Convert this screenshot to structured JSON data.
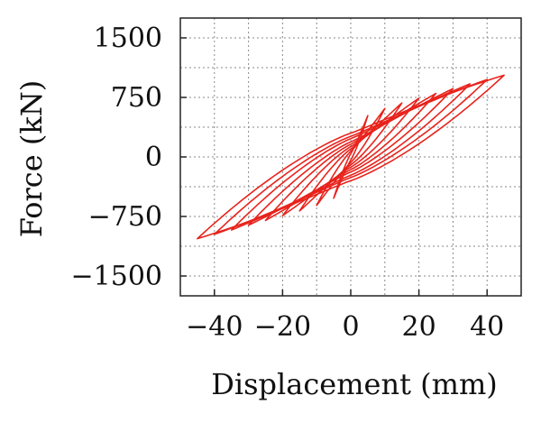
{
  "chart_data": {
    "type": "line",
    "title": "",
    "xlabel": "Displacement (mm)",
    "ylabel": "Force (kN)",
    "xlim": [
      -50,
      50
    ],
    "ylim": [
      -1750,
      1750
    ],
    "x_ticks": [
      {
        "value": -40,
        "label": "−40"
      },
      {
        "value": -20,
        "label": "−20"
      },
      {
        "value": 0,
        "label": "0"
      },
      {
        "value": 20,
        "label": "20"
      },
      {
        "value": 40,
        "label": "40"
      }
    ],
    "y_ticks": [
      {
        "value": 1500,
        "label": "1500"
      },
      {
        "value": 750,
        "label": "750"
      },
      {
        "value": 0,
        "label": "0"
      },
      {
        "value": -750,
        "label": "−750"
      },
      {
        "value": -1500,
        "label": "−1500"
      }
    ],
    "grid": true,
    "grid_style": "dotted",
    "line_color": "#e8231c",
    "series": [
      {
        "loops": [
          {
            "peak_displacement": 5,
            "peak_force": 520,
            "width": 40
          },
          {
            "peak_displacement": 10,
            "peak_force": 610,
            "width": 70
          },
          {
            "peak_displacement": 15,
            "peak_force": 680,
            "width": 100
          },
          {
            "peak_displacement": 20,
            "peak_force": 740,
            "width": 130
          },
          {
            "peak_displacement": 25,
            "peak_force": 800,
            "width": 160
          },
          {
            "peak_displacement": 30,
            "peak_force": 860,
            "width": 190
          },
          {
            "peak_displacement": 35,
            "peak_force": 920,
            "width": 230
          },
          {
            "peak_displacement": 40,
            "peak_force": 975,
            "width": 260
          },
          {
            "peak_displacement": 45,
            "peak_force": 1030,
            "width": 300
          }
        ]
      }
    ]
  }
}
